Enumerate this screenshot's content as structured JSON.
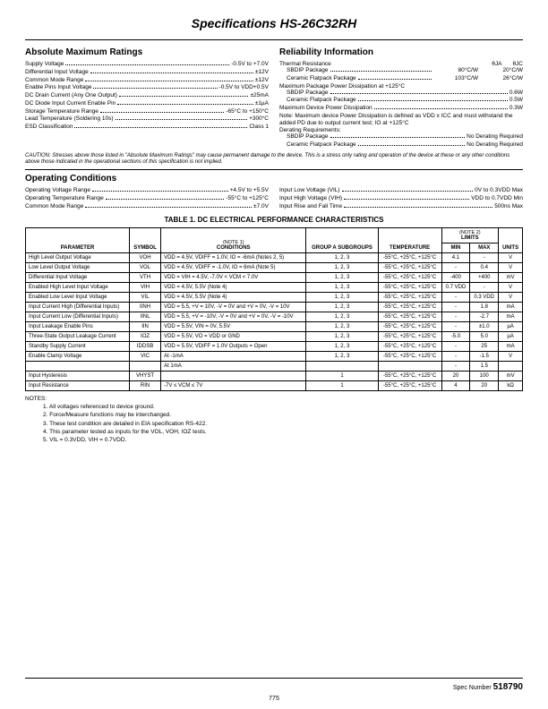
{
  "title": "Specifications HS-26C32RH",
  "sections": {
    "amr": {
      "heading": "Absolute Maximum Ratings",
      "rows": [
        {
          "l": "Supply Voltage",
          "v": "-0.5V to +7.0V"
        },
        {
          "l": "Differential Input Voltage",
          "v": "±12V"
        },
        {
          "l": "Common Mode Range",
          "v": "±12V"
        },
        {
          "l": "Enable Pins Input Voltage",
          "v": "-0.5V to VDD+0.5V"
        },
        {
          "l": "DC Drain Current (Any One Output)",
          "v": "±25mA"
        },
        {
          "l": "DC Diode Input Current Enable Pin",
          "v": "±1µA"
        },
        {
          "l": "Storage Temperature Range",
          "v": "-65°C to +150°C"
        },
        {
          "l": "Lead Temperature (Soldering 10s)",
          "v": "+300°C"
        },
        {
          "l": "ESD Classification",
          "v": "Class 1"
        }
      ]
    },
    "rel": {
      "heading": "Reliability Information",
      "thermal_label": "Thermal Resistance",
      "theta_ja": "θJA",
      "theta_jc": "θJC",
      "tr_rows": [
        {
          "l": "SBDIP Package",
          "ja": "80°C/W",
          "jc": "20°C/W"
        },
        {
          "l": "Ceramic Flatpack Package",
          "ja": "103°C/W",
          "jc": "26°C/W"
        }
      ],
      "mpd_label": "Maximum Package Power Dissipation at +125°C",
      "mpd_rows": [
        {
          "l": "SBDIP Package",
          "v": "0.6W"
        },
        {
          "l": "Ceramic Flatpack Package",
          "v": "0.5W"
        }
      ],
      "mdpd": {
        "l": "Maximum Device Power Dissipation",
        "v": "0.3W"
      },
      "note": "Note: Maximum device Power Dissipation is defined as VDD x ICC and must withstand the added PD due to output current test; IO at +125°C",
      "derate_label": "Derating Requirements:",
      "derate_rows": [
        {
          "l": "SBDIP Package",
          "v": "No Derating Required"
        },
        {
          "l": "Ceramic Flatpack Package",
          "v": "No Derating Required"
        }
      ]
    },
    "caution": "CAUTION: Stresses above those listed in \"Absolute Maximum Ratings\" may cause permanent damage to the device. This is a stress only rating and operation of the device at these or any other conditions above those indicated in the operational sections of this specification is not implied.",
    "oc": {
      "heading": "Operating Conditions",
      "left": [
        {
          "l": "Operating Voltage Range",
          "v": "+4.5V to +5.5V"
        },
        {
          "l": "Operating Temperature Range",
          "v": "-55°C to +125°C"
        },
        {
          "l": "Common Mode Range",
          "v": "±7.0V"
        }
      ],
      "right": [
        {
          "l": "Input Low Voltage (VIL)",
          "v": "0V to 0.3VDD Max"
        },
        {
          "l": "Input High Voltage (VIH)",
          "v": "VDD to 0.7VDD Min"
        },
        {
          "l": "Input Rise and Fall Time",
          "v": "500ns Max"
        }
      ]
    }
  },
  "table": {
    "caption": "TABLE 1. DC ELECTRICAL PERFORMANCE CHARACTERISTICS",
    "note1": "(NOTE 1)",
    "note2": "(NOTE 2)",
    "headers": {
      "param": "PARAMETER",
      "sym": "SYMBOL",
      "cond": "CONDITIONS",
      "grp": "GROUP A SUBGROUPS",
      "temp": "TEMPERATURE",
      "lim": "LIMITS",
      "min": "MIN",
      "max": "MAX",
      "units": "UNITS"
    },
    "rows": [
      {
        "p": "High Level Output Voltage",
        "s": "VOH",
        "c": "VDD = 4.5V, VDIFF = 1.0V, IO = -6mA (Notes 2, 5)",
        "g": "1, 2, 3",
        "t": "-55°C, +25°C, +125°C",
        "min": "4.1",
        "max": "-",
        "u": "V"
      },
      {
        "p": "Low Level Output Voltage",
        "s": "VOL",
        "c": "VDD = 4.5V, VDIFF = -1.0V, IO = 6mA (Note 5)",
        "g": "1, 2, 3",
        "t": "-55°C, +25°C, +125°C",
        "min": "-",
        "max": "0.4",
        "u": "V"
      },
      {
        "p": "Differential Input Voltage",
        "s": "VTH",
        "c": "VDD = VIH = 4.5V, -7.0V < VCM < 7.0V",
        "g": "1, 2, 3",
        "t": "-55°C, +25°C, +125°C",
        "min": "-400",
        "max": "+400",
        "u": "mV"
      },
      {
        "p": "Enabled High Level Input Voltage",
        "s": "VIH",
        "c": "VDD = 4.5V, 5.5V (Note 4)",
        "g": "1, 2, 3",
        "t": "-55°C, +25°C, +125°C",
        "min": "0.7 VDD",
        "max": "-",
        "u": "V"
      },
      {
        "p": "Enabled Low Level Input Voltage",
        "s": "VIL",
        "c": "VDD = 4.5V, 5.5V (Note 4)",
        "g": "1, 2, 3",
        "t": "-55°C, +25°C, +125°C",
        "min": "-",
        "max": "0.3 VDD",
        "u": "V"
      },
      {
        "p": "Input Current High (Differential Inputs)",
        "s": "IINH",
        "c": "VDD = 5.5, +V = 10V, -V = 0V and +V = 0V, -V = 10V",
        "g": "1, 2, 3",
        "t": "-55°C, +25°C, +125°C",
        "min": "-",
        "max": "1.8",
        "u": "mA"
      },
      {
        "p": "Input Current Low (Differential Inputs)",
        "s": "IINL",
        "c": "VDD = 5.5, +V = -10V, -V = 0V and +V = 0V, -V = -10V",
        "g": "1, 2, 3",
        "t": "-55°C, +25°C, +125°C",
        "min": "-",
        "max": "-2.7",
        "u": "mA"
      },
      {
        "p": "Input Leakage Enable Pins",
        "s": "IIN",
        "c": "VDD = 5.5V, VIN = 0V, 5.5V",
        "g": "1, 2, 3",
        "t": "-55°C, +25°C, +125°C",
        "min": "-",
        "max": "±1.0",
        "u": "µA"
      },
      {
        "p": "Three-State Output Leakage Current",
        "s": "IOZ",
        "c": "VDD = 5.5V, VO = VDD or GND",
        "g": "1, 2, 3",
        "t": "-55°C, +25°C, +125°C",
        "min": "-5.0",
        "max": "5.0",
        "u": "µA"
      },
      {
        "p": "Standby Supply Current",
        "s": "IDDSB",
        "c": "VDD = 5.5V, VDIFF = 1.0V Outputs = Open",
        "g": "1, 2, 3",
        "t": "-55°C, +25°C, +125°C",
        "min": "-",
        "max": "25",
        "u": "mA"
      },
      {
        "p": "Enable Clamp Voltage",
        "s": "VIC",
        "c": "At -1mA",
        "g": "1, 2, 3",
        "t": "-55°C, +25°C, +125°C",
        "min": "-",
        "max": "-1.5",
        "u": "V"
      },
      {
        "p": "",
        "s": "",
        "c": "At 1mA",
        "g": "",
        "t": "",
        "min": "-",
        "max": "1.5",
        "u": ""
      },
      {
        "p": "Input Hysteresis",
        "s": "VHYST",
        "c": "",
        "g": "1",
        "t": "-55°C, +25°C, +125°C",
        "min": "20",
        "max": "100",
        "u": "mV"
      },
      {
        "p": "Input Resistance",
        "s": "RIN",
        "c": "-7V ≤ VCM ≤ 7V",
        "g": "1",
        "t": "-55°C, +25°C, +125°C",
        "min": "4",
        "max": "20",
        "u": "kΩ"
      }
    ]
  },
  "notes": {
    "heading": "NOTES:",
    "items": [
      "1.  All voltages referenced to device ground.",
      "2.  Force/Measure functions may be interchanged.",
      "3.  These test condition are detailed in EIA specification RS-422.",
      "4.  This parameter tested as inputs for the VOL, VOH, IOZ tests.",
      "5.  VIL = 0.3VDD, VIH = 0.7VDD."
    ]
  },
  "footer": {
    "spec_label": "Spec Number",
    "spec_num": "518790",
    "page": "775"
  }
}
